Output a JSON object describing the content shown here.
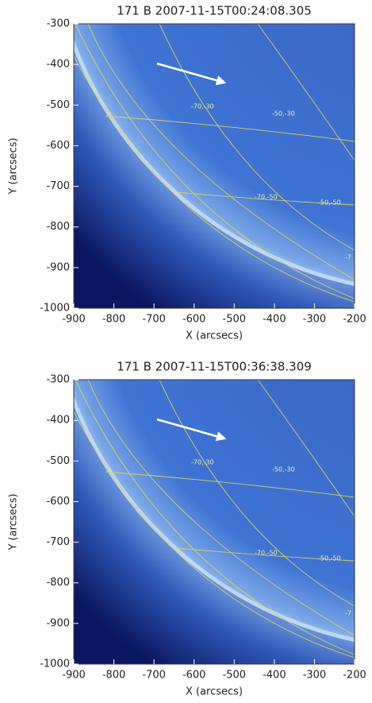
{
  "chart_data": [
    {
      "type": "image",
      "title": "171 B   2007-11-15T00:24:08.305",
      "x_label": "X (arcsecs)",
      "y_label": "Y (arcsecs)",
      "xlim": [
        -900,
        -200
      ],
      "ylim": [
        -1000,
        -300
      ],
      "xticks": [
        -900,
        -800,
        -700,
        -600,
        -500,
        -400,
        -300,
        -200
      ],
      "yticks": [
        -1000,
        -900,
        -800,
        -700,
        -600,
        -500,
        -400,
        -300
      ],
      "annotations": [
        "-70,-30",
        "-50,-30",
        "-70,-50",
        "-50,-50",
        "-7"
      ]
    },
    {
      "type": "image",
      "title": "171 B   2007-11-15T00:36:38.309",
      "x_label": "X (arcsecs)",
      "y_label": "Y (arcsecs)",
      "xlim": [
        -900,
        -200
      ],
      "ylim": [
        -1000,
        -300
      ],
      "xticks": [
        -900,
        -800,
        -700,
        -600,
        -500,
        -400,
        -300,
        -200
      ],
      "yticks": [
        -1000,
        -900,
        -800,
        -700,
        -600,
        -500,
        -400,
        -300
      ],
      "annotations": [
        "-70,-30",
        "-50,-30",
        "-70,-50",
        "-50,-50",
        "-7"
      ]
    }
  ]
}
